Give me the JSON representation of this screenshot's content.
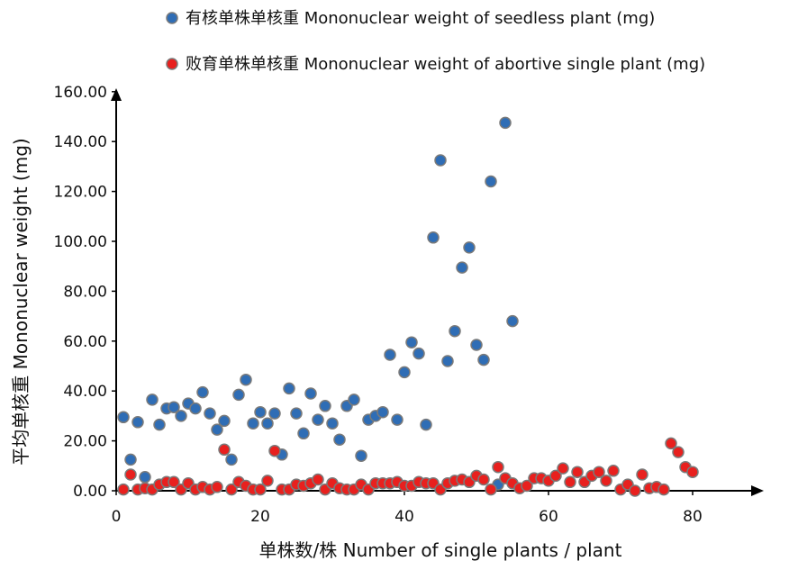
{
  "chart_data": {
    "type": "scatter",
    "title": "",
    "xlabel": "单株数/株 Number of single plants / plant",
    "ylabel": "平均单核重 Mononuclear weight (mg)",
    "xlim": [
      0,
      88
    ],
    "ylim": [
      0,
      160
    ],
    "xticks": [
      0,
      20,
      40,
      60,
      80
    ],
    "yticks": [
      0,
      20,
      40,
      60,
      80,
      100,
      120,
      140,
      160
    ],
    "xtick_labels": [
      "0",
      "20",
      "40",
      "60",
      "80"
    ],
    "ytick_labels": [
      "0.00",
      "20.00",
      "40.00",
      "60.00",
      "80.00",
      "100.00",
      "120.00",
      "140.00",
      "160.00"
    ],
    "grid": false,
    "legend_position": "top",
    "series": [
      {
        "name": "有核单株单核重 Mononuclear weight of seedless plant (mg)",
        "color": "#2f6db5",
        "points": [
          [
            1,
            29.5
          ],
          [
            2,
            12.5
          ],
          [
            3,
            27.5
          ],
          [
            4,
            5.5
          ],
          [
            5,
            36.5
          ],
          [
            6,
            26.5
          ],
          [
            7,
            33
          ],
          [
            8,
            33.5
          ],
          [
            9,
            30
          ],
          [
            10,
            35
          ],
          [
            11,
            33
          ],
          [
            12,
            39.5
          ],
          [
            13,
            31
          ],
          [
            14,
            24.5
          ],
          [
            15,
            28
          ],
          [
            16,
            12.5
          ],
          [
            17,
            38.5
          ],
          [
            18,
            44.5
          ],
          [
            19,
            27
          ],
          [
            20,
            31.5
          ],
          [
            21,
            27
          ],
          [
            22,
            31
          ],
          [
            23,
            14.5
          ],
          [
            24,
            41
          ],
          [
            25,
            31
          ],
          [
            26,
            23
          ],
          [
            27,
            39
          ],
          [
            28,
            28.5
          ],
          [
            29,
            34
          ],
          [
            30,
            27
          ],
          [
            31,
            20.5
          ],
          [
            32,
            34
          ],
          [
            33,
            36.5
          ],
          [
            34,
            14
          ],
          [
            35,
            28.5
          ],
          [
            36,
            30
          ],
          [
            37,
            31.5
          ],
          [
            38,
            54.5
          ],
          [
            39,
            28.5
          ],
          [
            40,
            47.5
          ],
          [
            41,
            59.5
          ],
          [
            42,
            55
          ],
          [
            43,
            26.5
          ],
          [
            44,
            101.5
          ],
          [
            45,
            132.5
          ],
          [
            46,
            52
          ],
          [
            47,
            64
          ],
          [
            48,
            89.5
          ],
          [
            49,
            97.5
          ],
          [
            50,
            58.5
          ],
          [
            51,
            52.5
          ],
          [
            52,
            124
          ],
          [
            53,
            2.5
          ],
          [
            54,
            147.5
          ],
          [
            55,
            68
          ]
        ]
      },
      {
        "name": "败育单株单核重 Mononuclear weight of abortive single plant (mg)",
        "color": "#e8201e",
        "points": [
          [
            1,
            0.5
          ],
          [
            2,
            6.5
          ],
          [
            3,
            0.5
          ],
          [
            4,
            1
          ],
          [
            5,
            0.5
          ],
          [
            6,
            2.5
          ],
          [
            7,
            3.5
          ],
          [
            8,
            3.5
          ],
          [
            9,
            0.5
          ],
          [
            10,
            3
          ],
          [
            11,
            0.5
          ],
          [
            12,
            1.5
          ],
          [
            13,
            0.5
          ],
          [
            14,
            1.5
          ],
          [
            15,
            16.5
          ],
          [
            16,
            0.5
          ],
          [
            17,
            3.5
          ],
          [
            18,
            2
          ],
          [
            19,
            0.5
          ],
          [
            20,
            0.5
          ],
          [
            21,
            4
          ],
          [
            22,
            16
          ],
          [
            23,
            0.5
          ],
          [
            24,
            0.5
          ],
          [
            25,
            2.5
          ],
          [
            26,
            2
          ],
          [
            27,
            3
          ],
          [
            28,
            4.5
          ],
          [
            29,
            0.5
          ],
          [
            30,
            3
          ],
          [
            31,
            1
          ],
          [
            32,
            0.5
          ],
          [
            33,
            0.5
          ],
          [
            34,
            2.5
          ],
          [
            35,
            0.5
          ],
          [
            36,
            3
          ],
          [
            37,
            3
          ],
          [
            38,
            3
          ],
          [
            39,
            3.5
          ],
          [
            40,
            2
          ],
          [
            41,
            2
          ],
          [
            42,
            3.5
          ],
          [
            43,
            3
          ],
          [
            44,
            3
          ],
          [
            45,
            0.5
          ],
          [
            46,
            3
          ],
          [
            47,
            4
          ],
          [
            48,
            4.5
          ],
          [
            49,
            3.5
          ],
          [
            50,
            6
          ],
          [
            51,
            4.5
          ],
          [
            52,
            0.5
          ],
          [
            53,
            9.5
          ],
          [
            54,
            5
          ],
          [
            55,
            3
          ],
          [
            56,
            1
          ],
          [
            57,
            2
          ],
          [
            58,
            5
          ],
          [
            59,
            5
          ],
          [
            60,
            4
          ],
          [
            61,
            6
          ],
          [
            62,
            9
          ],
          [
            63,
            3.5
          ],
          [
            64,
            7.5
          ],
          [
            65,
            3.5
          ],
          [
            66,
            6
          ],
          [
            67,
            7.5
          ],
          [
            68,
            4
          ],
          [
            69,
            8
          ],
          [
            70,
            0.5
          ],
          [
            71,
            2.5
          ],
          [
            72,
            0
          ],
          [
            73,
            6.5
          ],
          [
            74,
            1
          ],
          [
            75,
            1.5
          ],
          [
            76,
            0.5
          ],
          [
            77,
            19
          ],
          [
            78,
            15.5
          ],
          [
            79,
            9.5
          ],
          [
            80,
            7.5
          ]
        ]
      }
    ]
  }
}
